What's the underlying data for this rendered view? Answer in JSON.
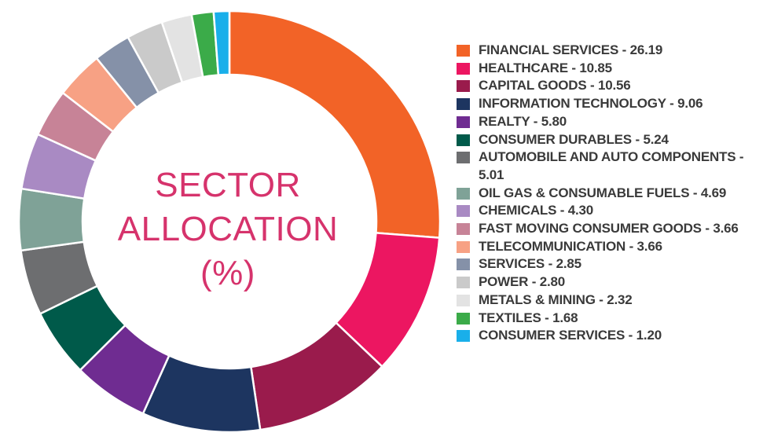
{
  "chart_data": {
    "type": "pie",
    "title": "SECTOR ALLOCATION (%)",
    "title_lines": [
      "SECTOR",
      "ALLOCATION",
      "(%)"
    ],
    "donut": true,
    "legend_position": "right",
    "slices": [
      {
        "label": "FINANCIAL SERVICES",
        "value": 26.19,
        "display": "FINANCIAL SERVICES - 26.19",
        "color": "#f26327"
      },
      {
        "label": "HEALTHCARE",
        "value": 10.85,
        "display": "HEALTHCARE - 10.85",
        "color": "#ec1661"
      },
      {
        "label": "CAPITAL GOODS",
        "value": 10.56,
        "display": "CAPITAL GOODS - 10.56",
        "color": "#9a1b4c"
      },
      {
        "label": "INFORMATION TECHNOLOGY",
        "value": 9.06,
        "display": "INFORMATION TECHNOLOGY - 9.06",
        "color": "#1d3560"
      },
      {
        "label": "REALTY",
        "value": 5.8,
        "display": "REALTY - 5.80",
        "color": "#6f2c91"
      },
      {
        "label": "CONSUMER DURABLES",
        "value": 5.24,
        "display": "CONSUMER DURABLES - 5.24",
        "color": "#005a4a"
      },
      {
        "label": "AUTOMOBILE AND AUTO COMPONENTS",
        "value": 5.01,
        "display": "AUTOMOBILE AND AUTO COMPONENTS - 5.01",
        "color": "#6d6e70"
      },
      {
        "label": "OIL GAS & CONSUMABLE FUELS",
        "value": 4.69,
        "display": "OIL GAS & CONSUMABLE FUELS - 4.69",
        "color": "#7fa297"
      },
      {
        "label": "CHEMICALS",
        "value": 4.3,
        "display": "CHEMICALS - 4.30",
        "color": "#a98ac3"
      },
      {
        "label": "FAST MOVING CONSUMER GOODS",
        "value": 3.66,
        "display": "FAST MOVING CONSUMER GOODS - 3.66",
        "color": "#c78397"
      },
      {
        "label": "TELECOMMUNICATION",
        "value": 3.66,
        "display": "TELECOMMUNICATION - 3.66",
        "color": "#f7a184"
      },
      {
        "label": "SERVICES",
        "value": 2.85,
        "display": "SERVICES - 2.85",
        "color": "#8591a8"
      },
      {
        "label": "POWER",
        "value": 2.8,
        "display": "POWER - 2.80",
        "color": "#cacaca"
      },
      {
        "label": "METALS & MINING",
        "value": 2.32,
        "display": "METALS & MINING - 2.32",
        "color": "#e3e3e3"
      },
      {
        "label": "TEXTILES",
        "value": 1.68,
        "display": "TEXTILES - 1.68",
        "color": "#3bab49"
      },
      {
        "label": "CONSUMER SERVICES",
        "value": 1.2,
        "display": "CONSUMER SERVICES - 1.20",
        "color": "#19afea"
      }
    ]
  }
}
